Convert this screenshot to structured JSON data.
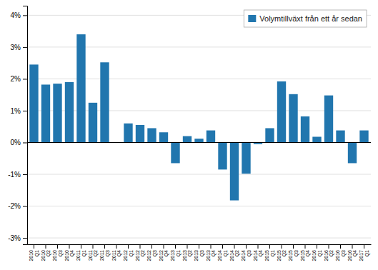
{
  "chart_data": {
    "type": "bar",
    "categories": [
      "2010\nQ1",
      "2010\nQ2",
      "2010\nQ3",
      "2010\nQ4",
      "2011\nQ1",
      "2011\nQ2",
      "2011\nQ3",
      "2011\nQ4",
      "2012\nQ1",
      "2012\nQ2",
      "2012\nQ3",
      "2012\nQ4",
      "2013\nQ1",
      "2013\nQ2",
      "2013\nQ3",
      "2013\nQ4",
      "2014\nQ1",
      "2014\nQ2",
      "2014\nQ3",
      "2014\nQ4",
      "2015\nQ1",
      "2015\nQ2",
      "2015\nQ3",
      "2015\nQ4",
      "2016\nQ1",
      "2016\nQ2",
      "2016\nQ3",
      "2016\nQ4",
      "2017\nQ1"
    ],
    "series": [
      {
        "name": "Volymtillväxt från ett år sedan",
        "color": "#2176ae",
        "values": [
          2.45,
          1.82,
          1.85,
          1.9,
          3.4,
          1.25,
          2.52,
          0.0,
          0.6,
          0.55,
          0.45,
          0.32,
          -0.65,
          0.2,
          0.12,
          0.38,
          -0.85,
          -1.82,
          -0.98,
          -0.05,
          0.45,
          1.92,
          1.52,
          0.82,
          0.18,
          1.48,
          0.38,
          -0.65,
          0.38
        ]
      }
    ],
    "ylim": [
      -3.2,
      4.3
    ],
    "yticks": [
      {
        "value": -3,
        "label": "-3%"
      },
      {
        "value": -2,
        "label": "-2%"
      },
      {
        "value": -1,
        "label": "-1%"
      },
      {
        "value": 0,
        "label": "0%"
      },
      {
        "value": 1,
        "label": "1%"
      },
      {
        "value": 2,
        "label": "2%"
      },
      {
        "value": 3,
        "label": "3%"
      },
      {
        "value": 4,
        "label": "4%"
      }
    ],
    "grid": true,
    "legend": "upper right"
  }
}
